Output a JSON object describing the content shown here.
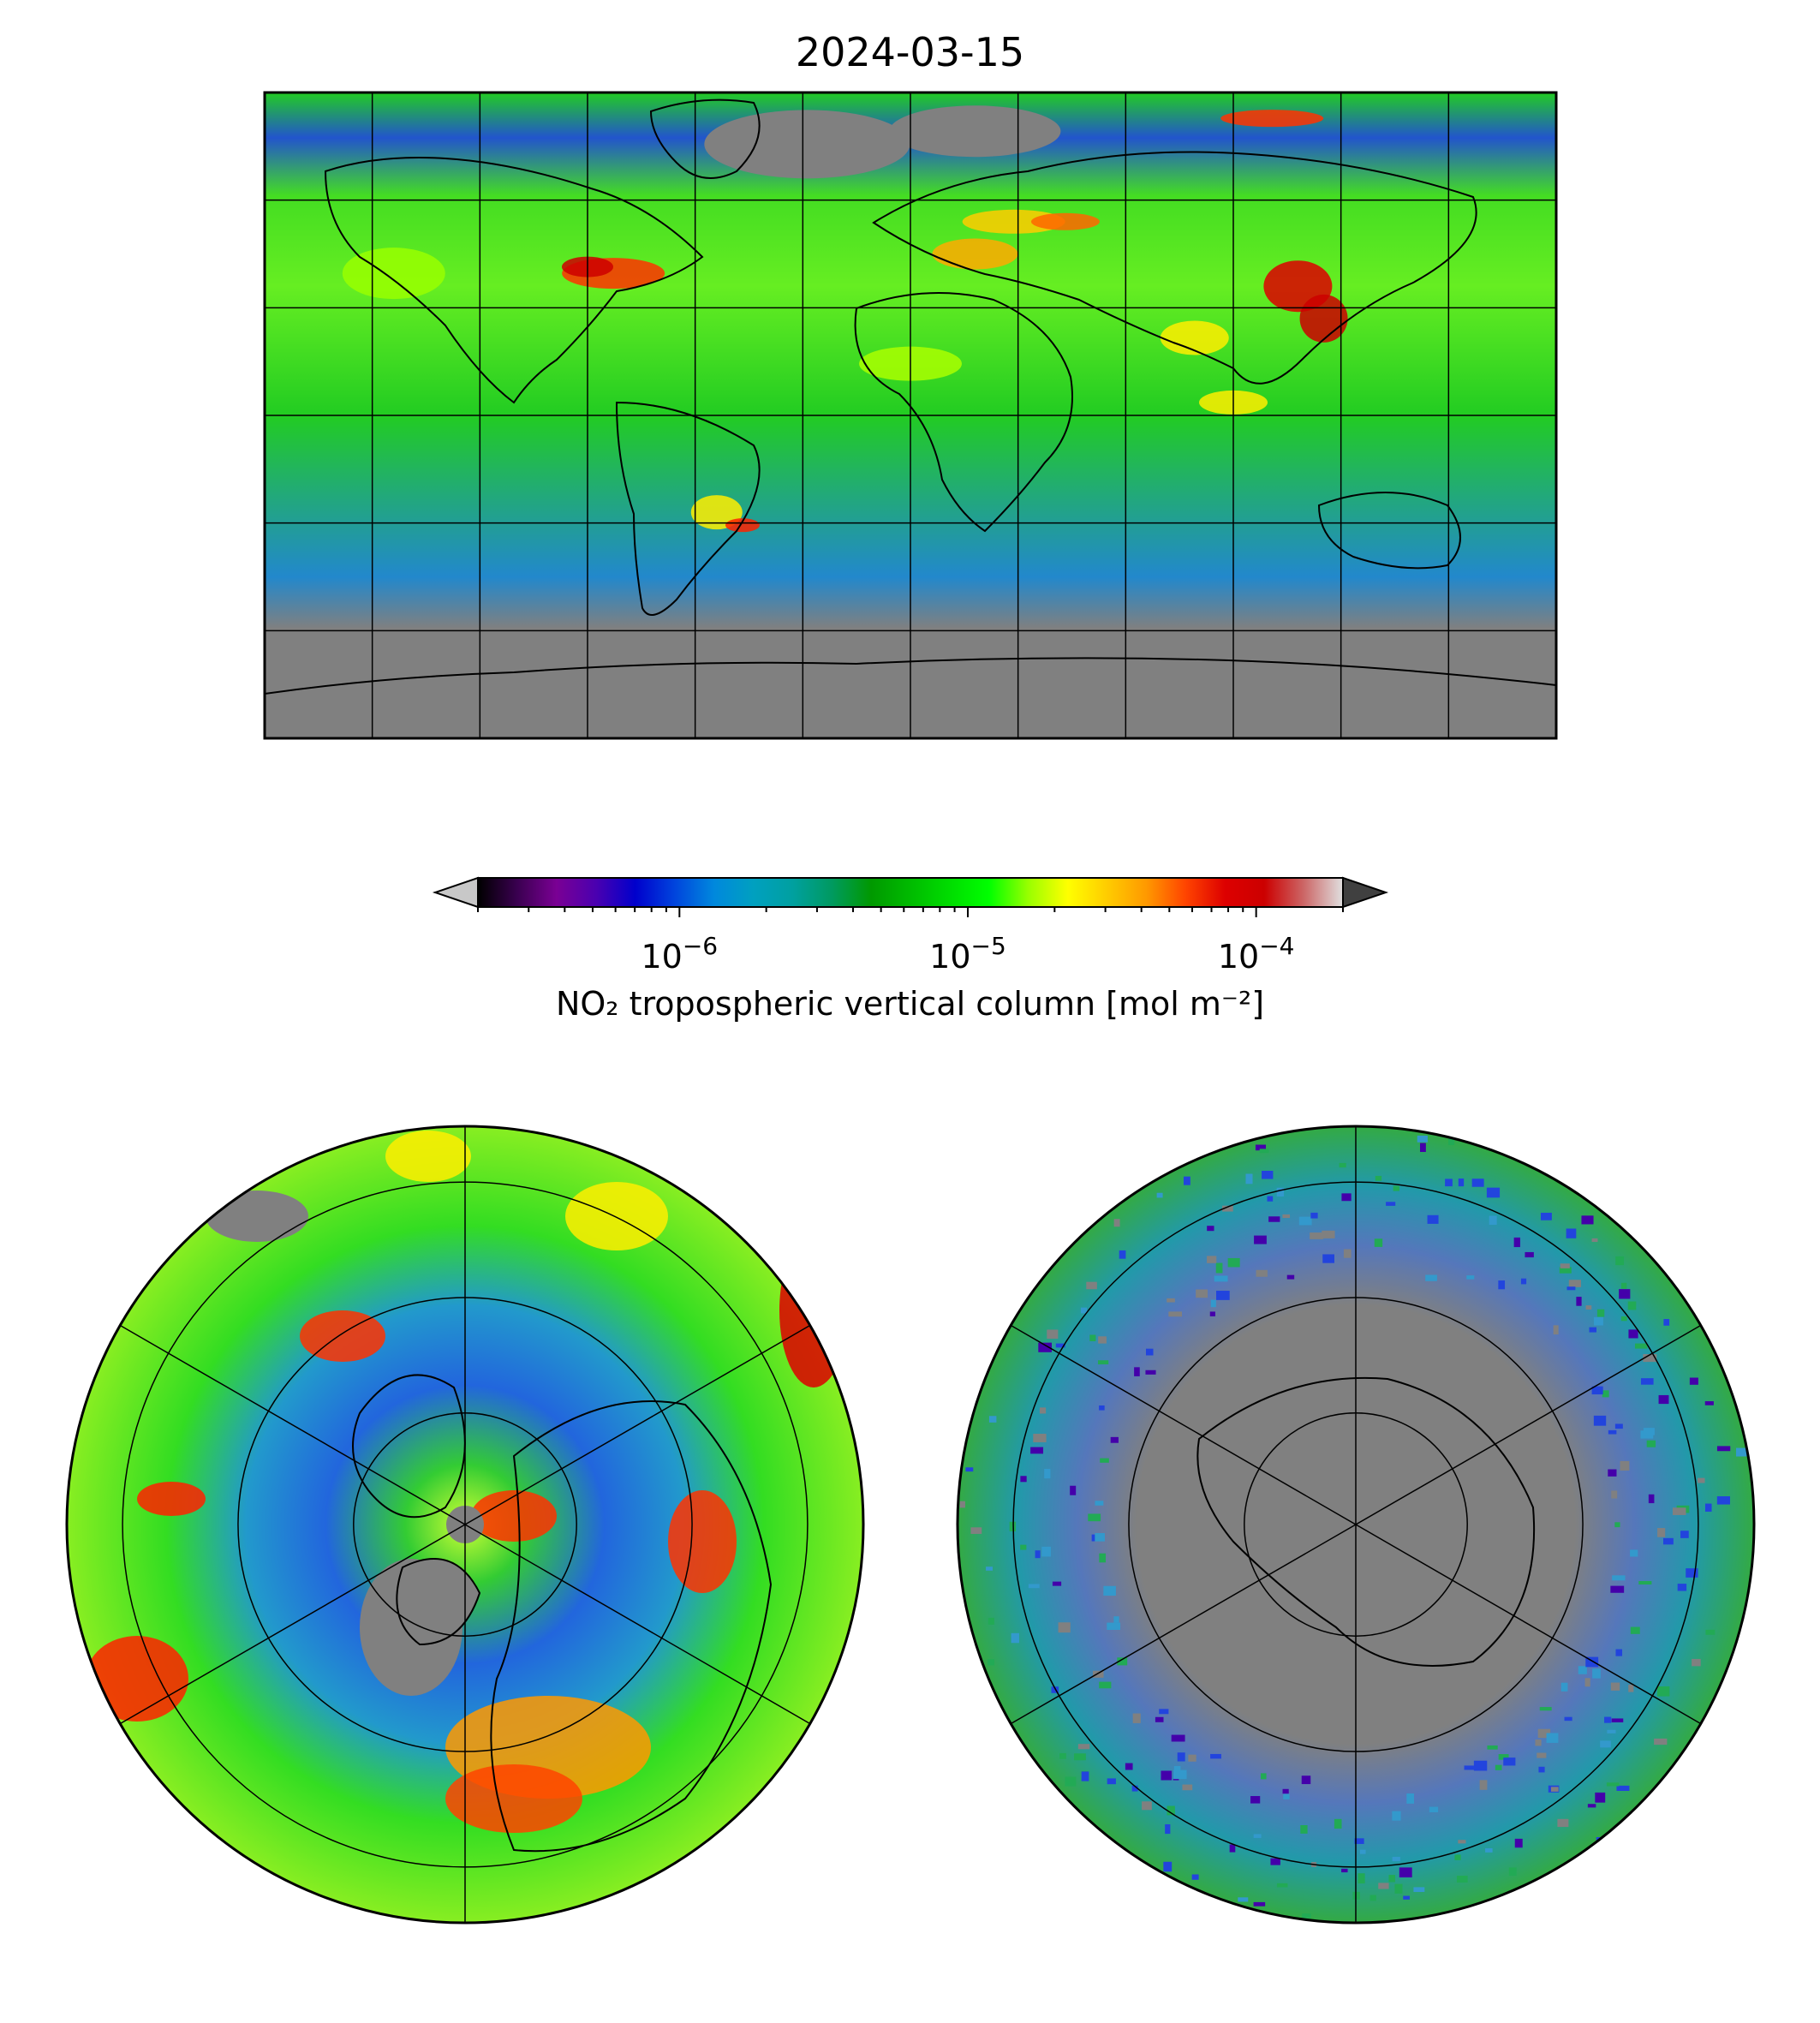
{
  "title": "2024-03-15",
  "colorbar": {
    "label": "NO₂ tropospheric vertical column [mol m⁻²]",
    "scale": "log",
    "range": [
      2e-07,
      0.0002
    ],
    "ticks": [
      {
        "value": 1e-06,
        "base": "10",
        "exp": "−6"
      },
      {
        "value": 1e-05,
        "base": "10",
        "exp": "−5"
      },
      {
        "value": 0.0001,
        "base": "10",
        "exp": "−4"
      }
    ],
    "extend": "both",
    "under_color": "#c8c8c8",
    "over_color": "#404040",
    "colormap": [
      "#000000",
      "#3a0050",
      "#7a0094",
      "#4b00b0",
      "#0000cc",
      "#0044dd",
      "#0088dd",
      "#00a0c0",
      "#00a0a0",
      "#009a60",
      "#009900",
      "#00bb00",
      "#00dd00",
      "#00ff00",
      "#99ff00",
      "#ffff00",
      "#ffcc00",
      "#ff9900",
      "#ff4400",
      "#dd0000",
      "#cc0000",
      "#cc6666",
      "#e0e0e0"
    ]
  },
  "maps": {
    "global": {
      "projection": "plate-carree",
      "nodata_color": "#808080"
    },
    "north_polar": {
      "projection": "north-polar-stereographic",
      "nodata_color": "#808080"
    },
    "south_polar": {
      "projection": "south-polar-stereographic",
      "nodata_color": "#808080"
    }
  }
}
